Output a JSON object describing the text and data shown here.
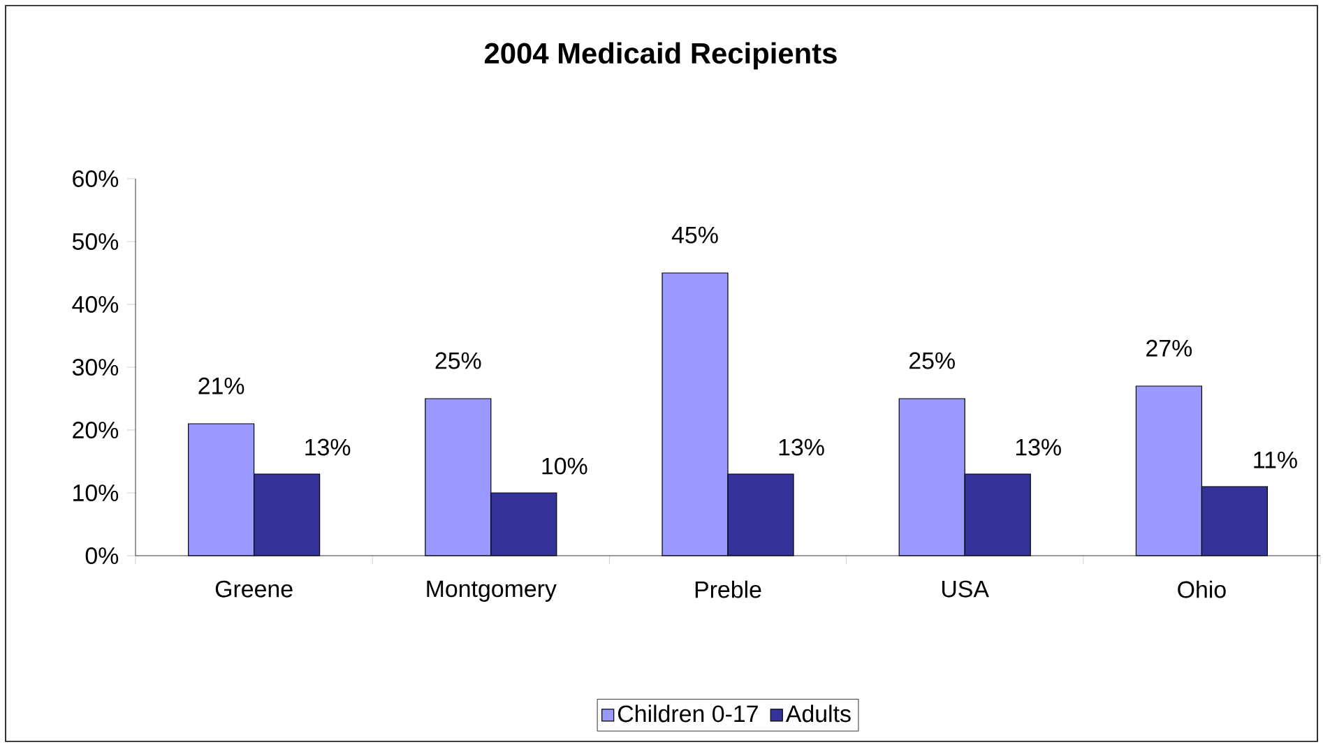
{
  "chart_data": {
    "type": "bar",
    "title": "2004 Medicaid Recipients",
    "categories": [
      "Greene",
      "Montgomery",
      "Preble",
      "USA",
      "Ohio"
    ],
    "series": [
      {
        "name": "Children 0-17",
        "color": "#9999ff",
        "values": [
          21,
          25,
          45,
          25,
          27
        ],
        "value_labels": [
          "21%",
          "25%",
          "45%",
          "25%",
          "27%"
        ]
      },
      {
        "name": "Adults",
        "color": "#333399",
        "values": [
          13,
          10,
          13,
          13,
          11
        ],
        "value_labels": [
          "13%",
          "10%",
          "13%",
          "13%",
          "11%"
        ]
      }
    ],
    "ylim": [
      0,
      60
    ],
    "yticks": [
      {
        "value": 0,
        "label": "0%"
      },
      {
        "value": 10,
        "label": "10%"
      },
      {
        "value": 20,
        "label": "20%"
      },
      {
        "value": 30,
        "label": "30%"
      },
      {
        "value": 40,
        "label": "40%"
      },
      {
        "value": 50,
        "label": "50%"
      },
      {
        "value": 60,
        "label": "60%"
      }
    ],
    "grid": false,
    "legend": "bottom"
  }
}
